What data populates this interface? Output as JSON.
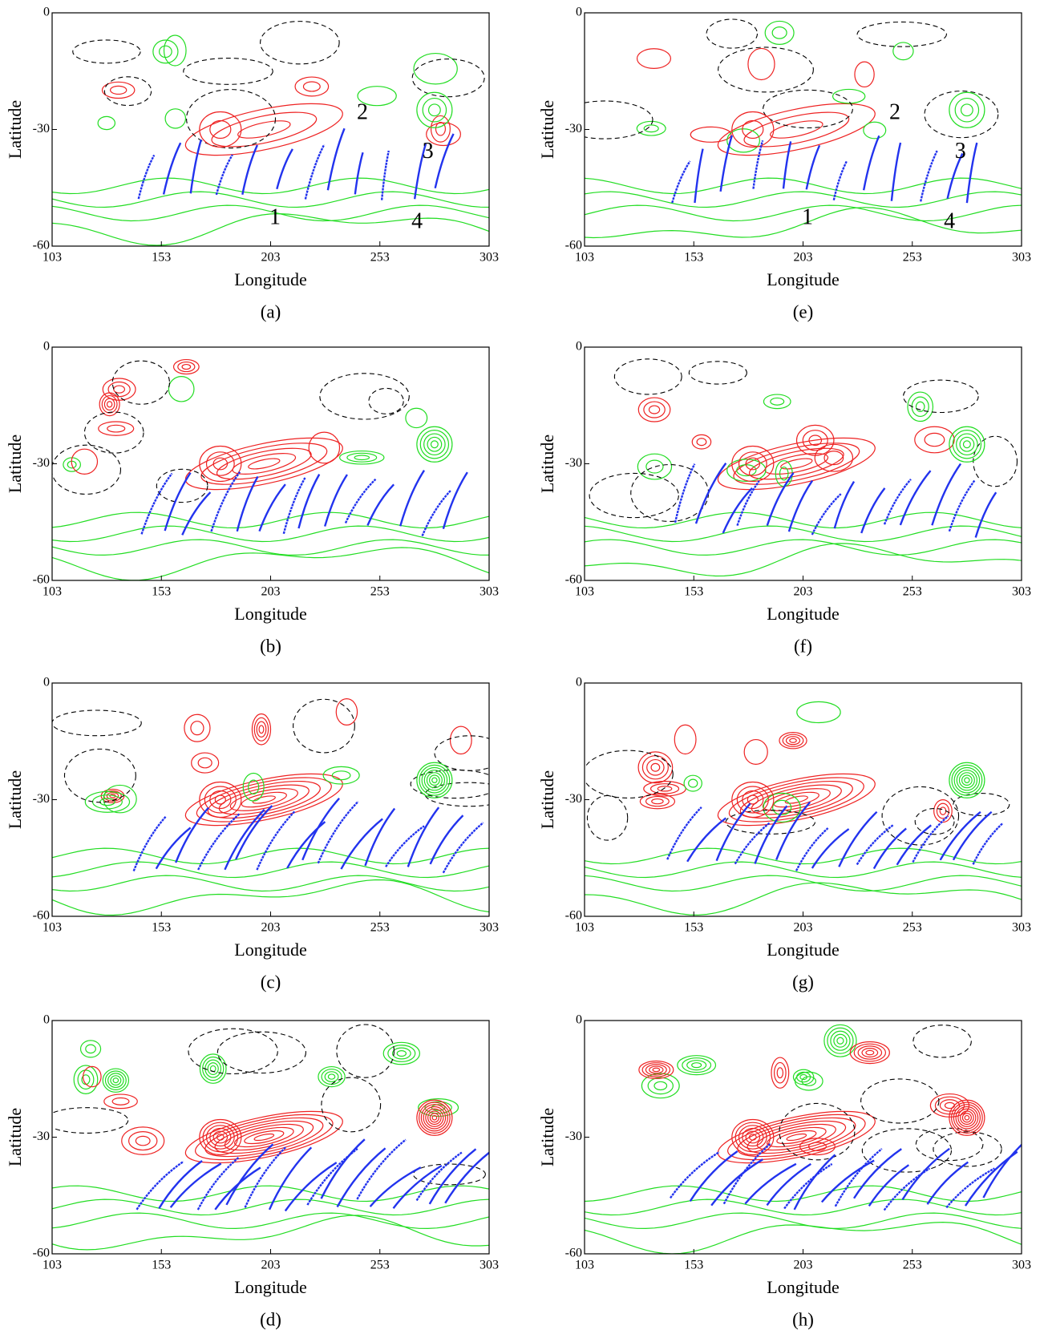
{
  "chart_data": [
    {
      "type": "contour",
      "caption": "(a)",
      "xlabel": "Longitude",
      "ylabel": "Latitude",
      "xlim": [
        103,
        303
      ],
      "ylim": [
        -60,
        0
      ],
      "xticks": [
        103,
        153,
        203,
        253,
        303
      ],
      "yticks": [
        0,
        -30,
        -60
      ],
      "annotations": [
        "1",
        "2",
        "3",
        "4"
      ]
    },
    {
      "type": "contour",
      "caption": "(b)",
      "xlabel": "Longitude",
      "ylabel": "Latitude",
      "xlim": [
        103,
        303
      ],
      "ylim": [
        -60,
        0
      ],
      "xticks": [
        103,
        153,
        203,
        253,
        303
      ],
      "yticks": [
        0,
        -30,
        -60
      ]
    },
    {
      "type": "contour",
      "caption": "(c)",
      "xlabel": "Longitude",
      "ylabel": "Latitude",
      "xlim": [
        103,
        303
      ],
      "ylim": [
        -60,
        0
      ],
      "xticks": [
        103,
        153,
        203,
        253,
        303
      ],
      "yticks": [
        0,
        -30,
        -60
      ]
    },
    {
      "type": "contour",
      "caption": "(d)",
      "xlabel": "Longitude",
      "ylabel": "Latitude",
      "xlim": [
        103,
        303
      ],
      "ylim": [
        -60,
        0
      ],
      "xticks": [
        103,
        153,
        203,
        253,
        303
      ],
      "yticks": [
        0,
        -30,
        -60
      ]
    },
    {
      "type": "contour",
      "caption": "(e)",
      "xlabel": "Longitude",
      "ylabel": "Latitude",
      "xlim": [
        103,
        303
      ],
      "ylim": [
        -60,
        0
      ],
      "xticks": [
        103,
        153,
        203,
        253,
        303
      ],
      "yticks": [
        0,
        -30,
        -60
      ],
      "annotations": [
        "1",
        "2",
        "3",
        "4"
      ]
    },
    {
      "type": "contour",
      "caption": "(f)",
      "xlabel": "Longitude",
      "ylabel": "Latitude",
      "xlim": [
        103,
        303
      ],
      "ylim": [
        -60,
        0
      ],
      "xticks": [
        103,
        153,
        203,
        253,
        303
      ],
      "yticks": [
        0,
        -30,
        -60
      ]
    },
    {
      "type": "contour",
      "caption": "(g)",
      "xlabel": "Longitude",
      "ylabel": "Latitude",
      "xlim": [
        103,
        303
      ],
      "ylim": [
        -60,
        0
      ],
      "xticks": [
        103,
        153,
        203,
        253,
        303
      ],
      "yticks": [
        0,
        -30,
        -60
      ]
    },
    {
      "type": "contour",
      "caption": "(h)",
      "xlabel": "Longitude",
      "ylabel": "Latitude",
      "xlim": [
        103,
        303
      ],
      "ylim": [
        -60,
        0
      ],
      "xticks": [
        103,
        153,
        203,
        253,
        303
      ],
      "yticks": [
        0,
        -30,
        -60
      ]
    }
  ]
}
